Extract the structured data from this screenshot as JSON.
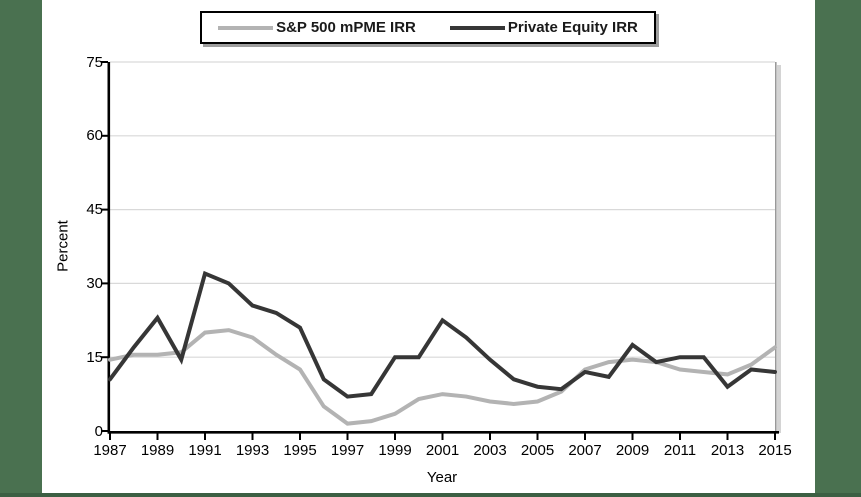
{
  "page": {
    "background": "#ffffff",
    "side_bar_color": "#4a7150",
    "bottom_bar_color": "#3c5f43"
  },
  "legend": {
    "position": "top-center",
    "border_color": "#000000",
    "shadow_color": "#9e9e9e"
  },
  "chart_data": {
    "type": "line",
    "title": "",
    "xlabel": "Year",
    "ylabel": "Percent",
    "grid": true,
    "grid_color": "#d9d9d9",
    "axis_color": "#000000",
    "legend_position": "top",
    "ylim": [
      0,
      75
    ],
    "y_ticks": [
      0,
      15,
      30,
      45,
      60,
      75
    ],
    "x_tick_labels": [
      "1987",
      "1989",
      "1991",
      "1993",
      "1995",
      "1997",
      "1999",
      "2001",
      "2003",
      "2005",
      "2007",
      "2009",
      "2011",
      "2013",
      "2015"
    ],
    "x": [
      1987,
      1988,
      1989,
      1990,
      1991,
      1992,
      1993,
      1994,
      1995,
      1996,
      1997,
      1998,
      1999,
      2000,
      2001,
      2002,
      2003,
      2004,
      2005,
      2006,
      2007,
      2008,
      2009,
      2010,
      2011,
      2012,
      2013,
      2014,
      2015
    ],
    "series": [
      {
        "name": "S&P 500 mPME IRR",
        "color": "#b3b3b3",
        "values": [
          14.5,
          15.5,
          15.5,
          16,
          20,
          20.5,
          19,
          15.5,
          12.5,
          5,
          1.5,
          2,
          3.5,
          6.5,
          7.5,
          7,
          6,
          5.5,
          6,
          8,
          12.5,
          14,
          14.5,
          14,
          12.5,
          12,
          11.5,
          13.5,
          17
        ]
      },
      {
        "name": "Private Equity IRR",
        "color": "#363636",
        "values": [
          10.5,
          17,
          23,
          14.5,
          32,
          30,
          25.5,
          24,
          21,
          10.5,
          7,
          7.5,
          15,
          15,
          22.5,
          19,
          14.5,
          10.5,
          9,
          8.5,
          12,
          11,
          17.5,
          14,
          15,
          15,
          9,
          12.5,
          12
        ]
      }
    ]
  }
}
